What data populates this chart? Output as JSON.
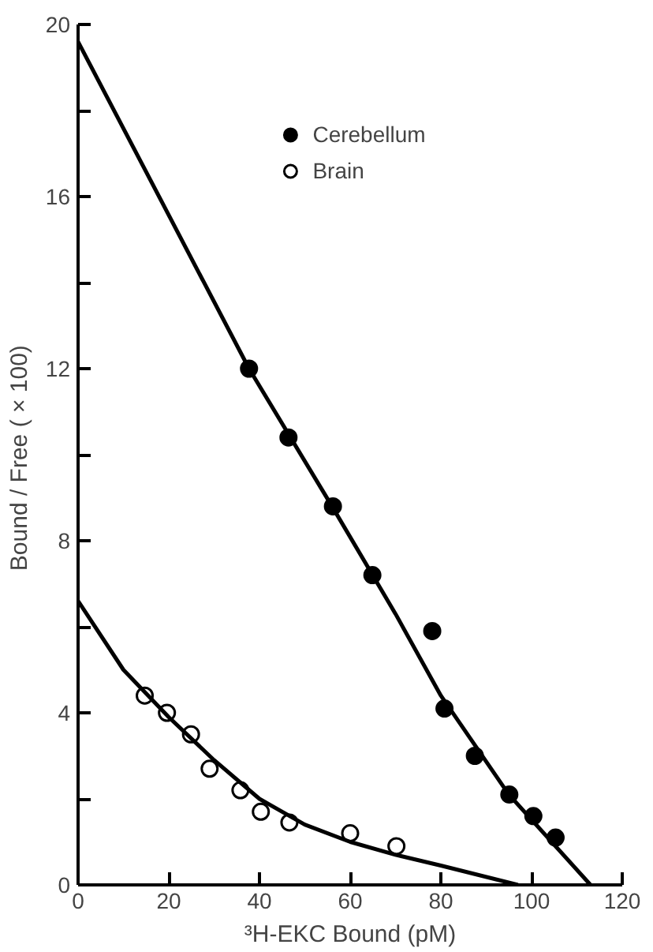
{
  "chart_data": {
    "type": "scatter",
    "xlabel": "³H-EKC Bound (pM)",
    "ylabel": "Bound / Free  ( × 100)",
    "xlim": [
      0,
      120
    ],
    "ylim": [
      0,
      20
    ],
    "xticks": [
      0,
      20,
      40,
      60,
      80,
      100,
      120
    ],
    "yticks": [
      0,
      {
        "value": 2,
        "label": null
      },
      4,
      {
        "value": 6,
        "label": null
      },
      8,
      {
        "value": 10,
        "label": null
      },
      12,
      {
        "value": 14,
        "label": null
      },
      16,
      {
        "value": 18,
        "label": null
      },
      20
    ],
    "legend": "top",
    "grid": false,
    "series": [
      {
        "name": "Cerebellum",
        "color": "#000000",
        "marker": "circle",
        "x": [
          37.7,
          46.4,
          56.2,
          64.9,
          78.1,
          80.8,
          87.5,
          95.1,
          100.4,
          105.3
        ],
        "values": [
          12.0,
          10.4,
          8.8,
          7.2,
          5.9,
          4.1,
          3.0,
          2.1,
          1.6,
          1.1
        ]
      },
      {
        "name": "Brain",
        "color": "#ffffff",
        "marker": "circle",
        "x": [
          14.7,
          19.6,
          24.9,
          29.0,
          35.8,
          40.3,
          46.6,
          60.0,
          70.2
        ],
        "values": [
          4.4,
          4.0,
          3.5,
          2.7,
          2.2,
          1.7,
          1.45,
          1.2,
          0.9
        ]
      },
      {
        "type": "line",
        "color": "#000000",
        "marker": "none",
        "x": [
          0,
          37.7,
          56,
          70,
          80,
          95,
          113
        ],
        "values": [
          19.6,
          12.0,
          8.8,
          6.3,
          4.4,
          2.1,
          0
        ]
      },
      {
        "type": "line",
        "color": "#000000",
        "marker": "none",
        "x": [
          0,
          10,
          20,
          30,
          40,
          50,
          60,
          70,
          80,
          97
        ],
        "values": [
          6.6,
          5.0,
          3.9,
          2.9,
          2.0,
          1.4,
          1.0,
          0.7,
          0.45,
          0
        ]
      }
    ]
  }
}
